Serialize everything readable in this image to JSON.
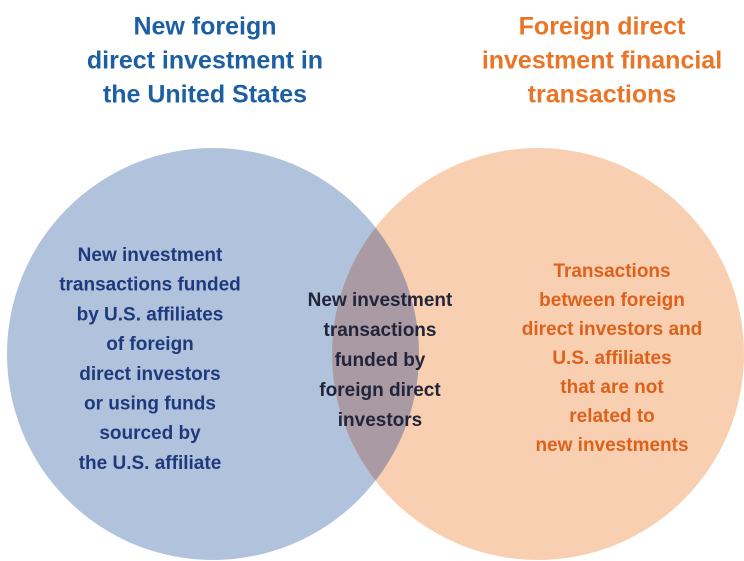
{
  "left_title": [
    "New foreign",
    "direct investment in",
    "the United States"
  ],
  "right_title": [
    "Foreign direct",
    "investment financial",
    "transactions"
  ],
  "left_region": [
    "New investment",
    "transactions funded",
    "by U.S. affiliates",
    "of foreign",
    "direct investors",
    "or using funds",
    "sourced by",
    "the U.S. affiliate"
  ],
  "overlap_region": [
    "New investment",
    "transactions",
    "funded by",
    "foreign direct",
    "investors"
  ],
  "right_region": [
    "Transactions",
    "between foreign",
    "direct investors and",
    "U.S. affiliates",
    "that are not",
    "related to",
    "new investments"
  ]
}
